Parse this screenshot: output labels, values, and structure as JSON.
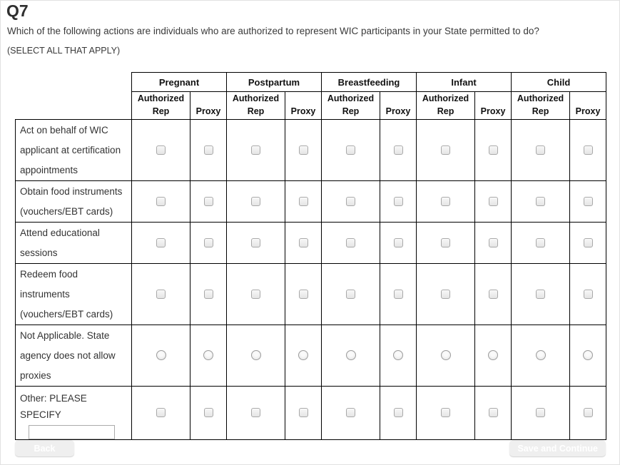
{
  "page": {
    "question_id": "Q7",
    "question_text": "Which of the following actions are individuals who are authorized to represent WIC participants in your State permitted to do?",
    "instruction": "(SELECT ALL THAT APPLY)"
  },
  "table": {
    "groups": [
      "Pregnant",
      "Postpartum",
      "Breastfeeding",
      "Infant",
      "Child"
    ],
    "subheaders": [
      "Authorized Rep",
      "Proxy"
    ],
    "rows": [
      {
        "label": "Act on behalf of WIC applicant at certification appointments",
        "control": "checkbox",
        "checked": false
      },
      {
        "label": "Obtain food instruments (vouchers/EBT cards)",
        "control": "checkbox",
        "checked": false
      },
      {
        "label": "Attend educational sessions",
        "control": "checkbox",
        "checked": false
      },
      {
        "label": "Redeem food instruments (vouchers/EBT cards)",
        "control": "checkbox",
        "checked": false
      },
      {
        "label": "Not Applicable. State agency does not allow proxies",
        "control": "radio",
        "checked": false
      },
      {
        "label": "Other: PLEASE SPECIFY",
        "control": "checkbox",
        "checked": false,
        "has_text_input": true,
        "input_value": ""
      }
    ]
  },
  "buttons": {
    "back": "Back",
    "save_continue": "Save and Continue"
  },
  "colors": {
    "button_blue": "#1ba4dc",
    "table_border": "#000000",
    "page_border": "#e2e2e2"
  }
}
